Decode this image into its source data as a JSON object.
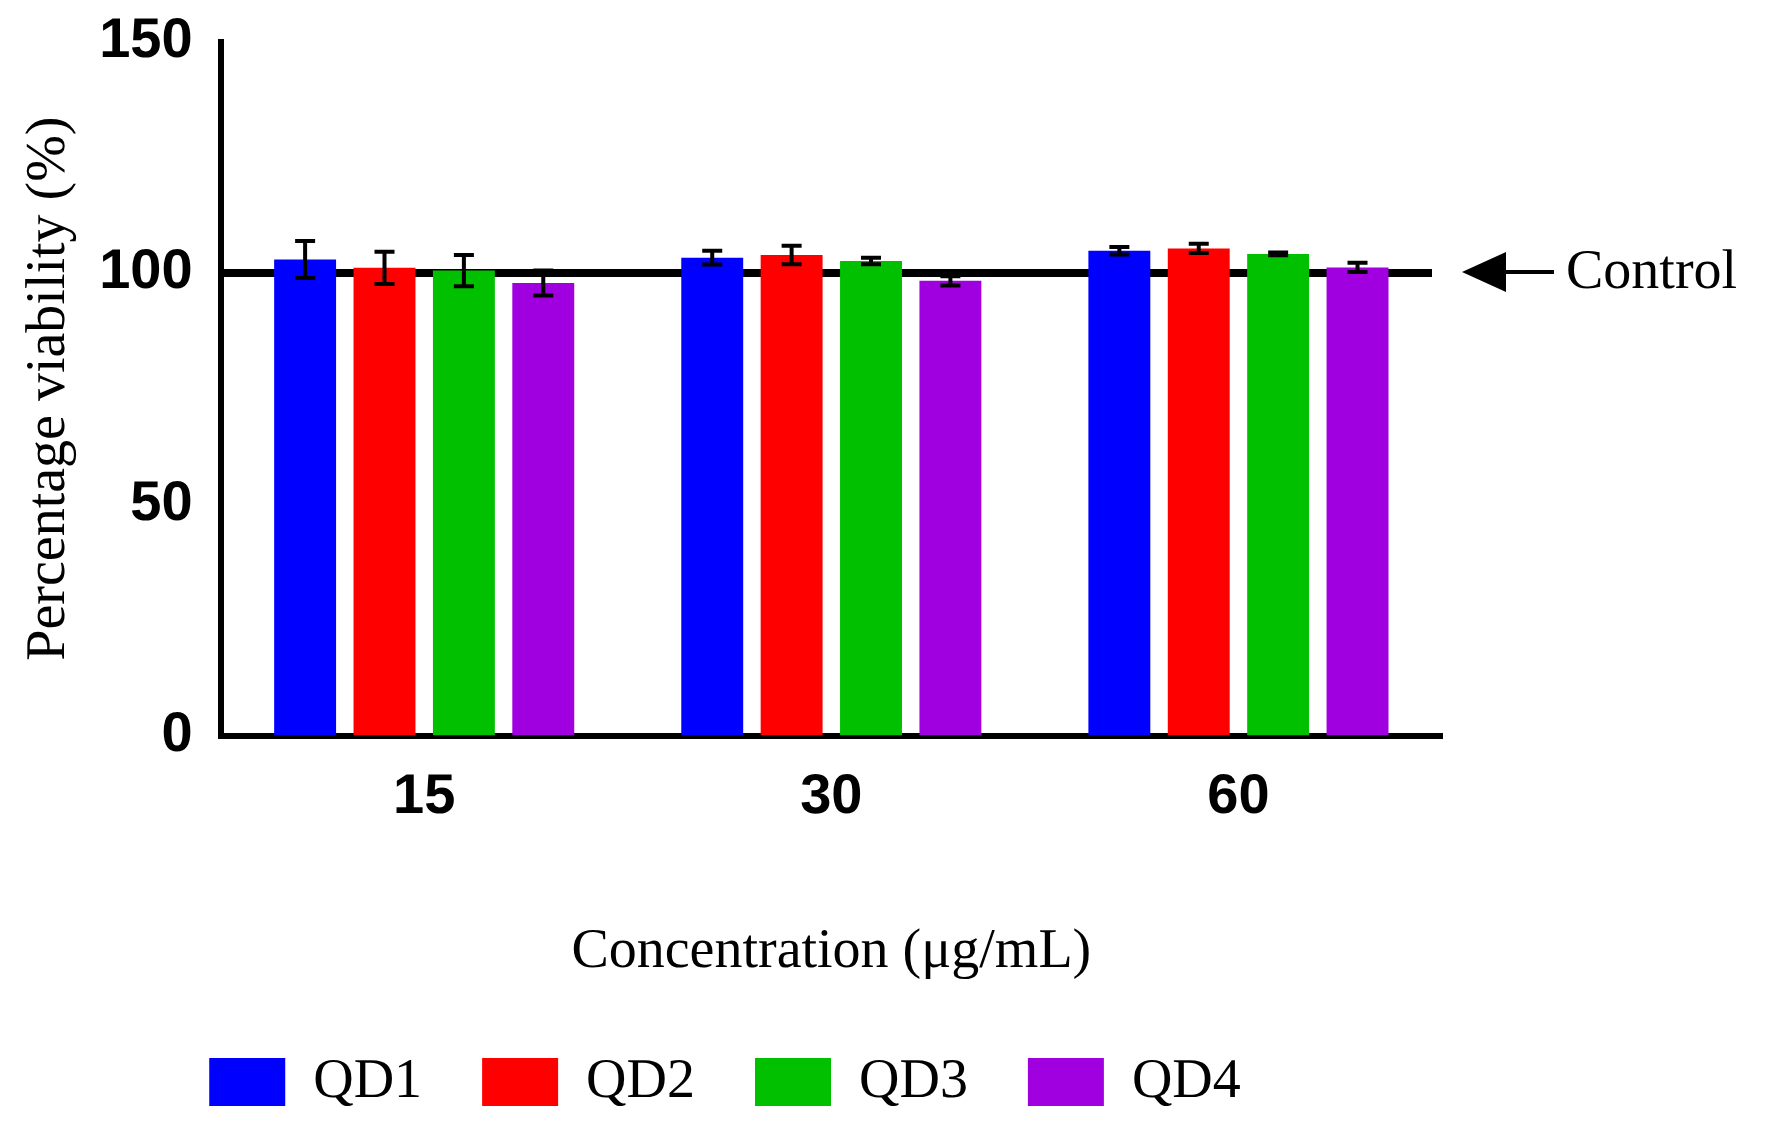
{
  "chart_data": {
    "type": "bar",
    "xlabel": "Concentration (μg/mL)",
    "ylabel": "Percentage viability (%)",
    "categories": [
      "15",
      "30",
      "60"
    ],
    "series": [
      {
        "name": "QD1",
        "color": "#0000ff",
        "values": [
          102.9,
          103.3,
          104.8
        ],
        "errors": [
          4,
          1.5,
          0.8
        ]
      },
      {
        "name": "QD2",
        "color": "#ff0000",
        "values": [
          101.1,
          103.9,
          105.3
        ],
        "errors": [
          3.5,
          2,
          1
        ]
      },
      {
        "name": "QD3",
        "color": "#00c000",
        "values": [
          100.5,
          102.6,
          104.1
        ],
        "errors": [
          3.4,
          0.7,
          0.3
        ]
      },
      {
        "name": "QD4",
        "color": "#a000e0",
        "values": [
          97.8,
          98.3,
          101.2
        ],
        "errors": [
          2.7,
          1,
          1
        ]
      }
    ],
    "ylim": [
      0,
      150
    ],
    "yticks": [
      0,
      50,
      100,
      150
    ],
    "grid": false,
    "legend": "bottom",
    "ref_lines": [
      {
        "axis": "y",
        "value": 100,
        "label": "Control",
        "color": "#000000"
      }
    ]
  }
}
